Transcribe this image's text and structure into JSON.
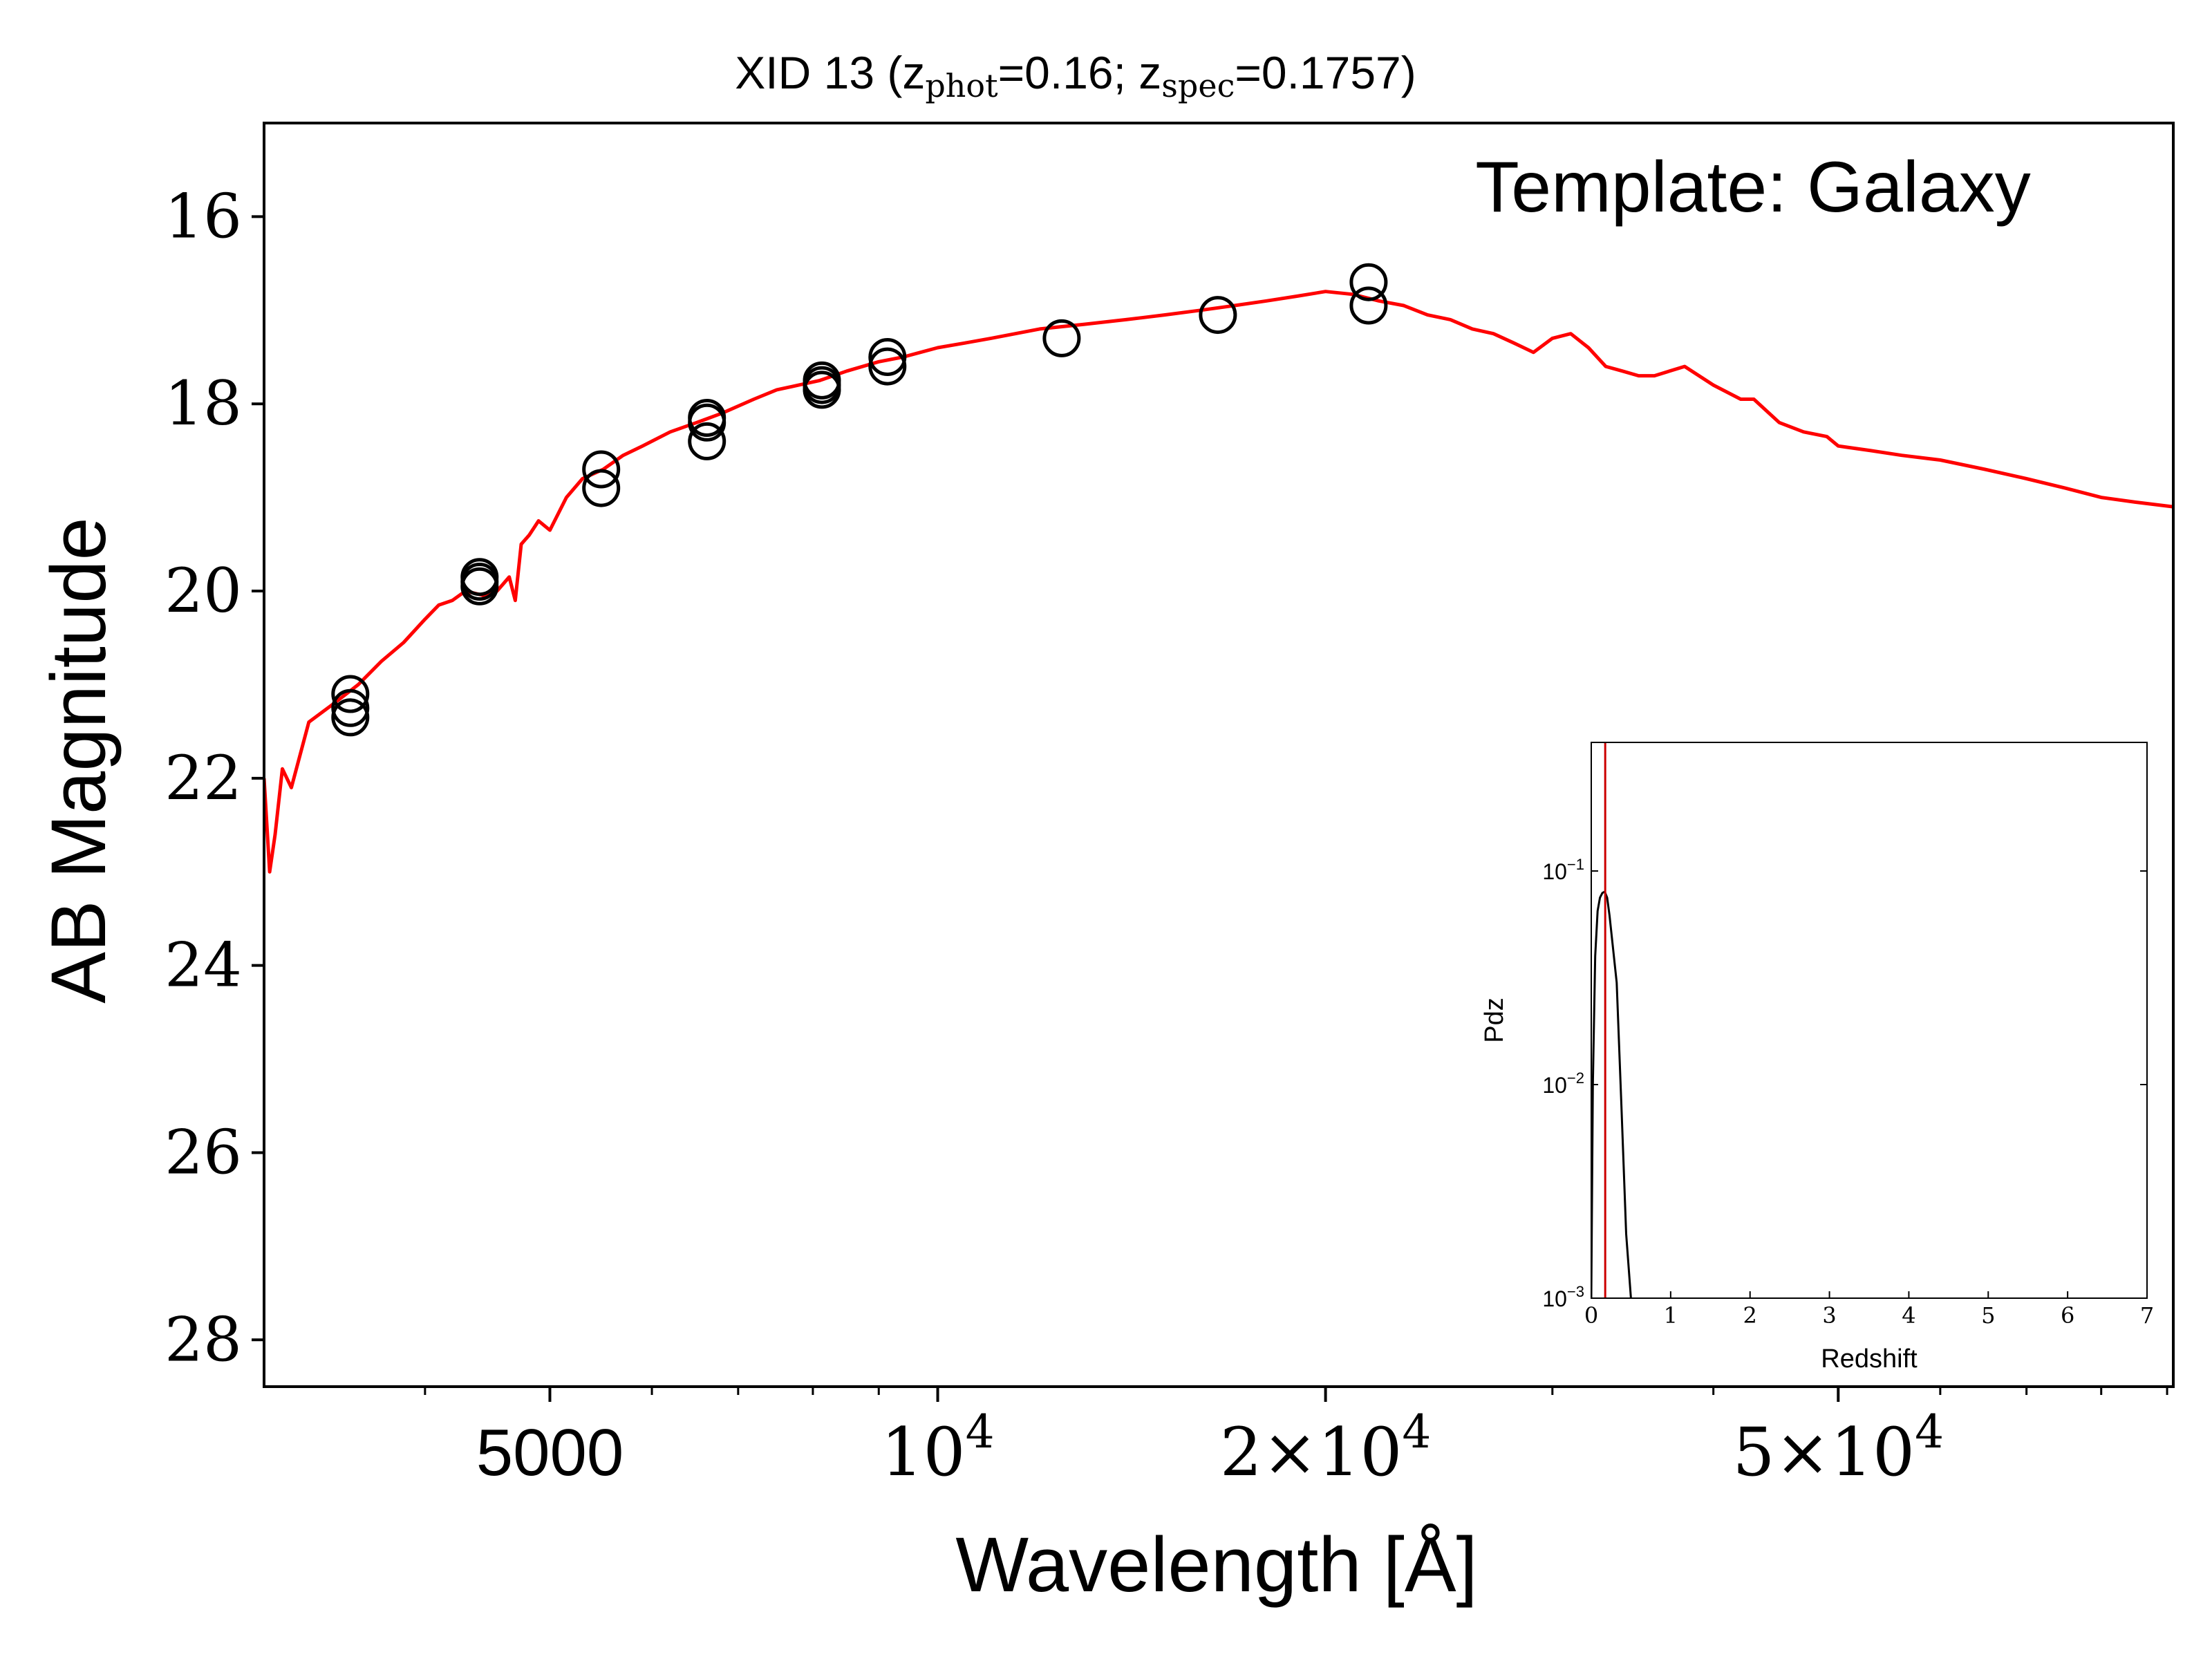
{
  "chart_data": [
    {
      "type": "scatter",
      "title": {
        "prefix": "XID 13 (z",
        "sub1": "phot",
        "mid": "=0.16; z",
        "sub2": "spec",
        "suffix": "=0.1757)"
      },
      "annotation": "Template: Galaxy",
      "xlabel": "Wavelength [Å]",
      "ylabel": "AB Magnitude",
      "x_scale": "log",
      "xlim": [
        3000,
        91000
      ],
      "ylim": [
        28.5,
        15
      ],
      "y_inverted": true,
      "grid": false,
      "x_ticks": [
        {
          "value": 5000,
          "label": "5000",
          "format": "plain"
        },
        {
          "value": 10000,
          "base": "10",
          "exp": "4",
          "format": "power"
        },
        {
          "value": 20000,
          "mant": "2",
          "times": "×",
          "base": "10",
          "exp": "4",
          "format": "sci"
        },
        {
          "value": 50000,
          "mant": "5",
          "times": "×",
          "base": "10",
          "exp": "4",
          "format": "sci"
        }
      ],
      "y_ticks": [
        {
          "value": 16,
          "label": "16"
        },
        {
          "value": 18,
          "label": "18"
        },
        {
          "value": 20,
          "label": "20"
        },
        {
          "value": 22,
          "label": "22"
        },
        {
          "value": 24,
          "label": "24"
        },
        {
          "value": 26,
          "label": "26"
        },
        {
          "value": 28,
          "label": "28"
        }
      ],
      "series": [
        {
          "kind": "line",
          "color": "#ff0000",
          "x": [
            3000,
            3030,
            3060,
            3100,
            3150,
            3250,
            3400,
            3550,
            3700,
            3850,
            4000,
            4100,
            4200,
            4300,
            4450,
            4550,
            4650,
            4700,
            4750,
            4820,
            4900,
            5000,
            5150,
            5300,
            5500,
            5700,
            5900,
            6200,
            6500,
            6800,
            7200,
            7500,
            7800,
            8100,
            8500,
            9000,
            9400,
            10000,
            10500,
            11000,
            12000,
            13000,
            14000,
            15000,
            16000,
            17000,
            18000,
            19000,
            20000,
            21000,
            22000,
            23000,
            24000,
            25000,
            26000,
            27000,
            28000,
            29000,
            30000,
            31000,
            32000,
            33000,
            34000,
            35000,
            36000,
            38000,
            40000,
            42000,
            43000,
            45000,
            47000,
            49000,
            50000,
            53000,
            56000,
            60000,
            65000,
            70000,
            75000,
            80000,
            85000,
            91000
          ],
          "y": [
            22.0,
            23.0,
            22.6,
            21.9,
            22.1,
            21.4,
            21.2,
            21.0,
            20.75,
            20.55,
            20.3,
            20.15,
            20.1,
            20.0,
            20.05,
            20.0,
            19.85,
            20.1,
            19.5,
            19.4,
            19.25,
            19.35,
            19.0,
            18.8,
            18.7,
            18.55,
            18.45,
            18.3,
            18.2,
            18.1,
            17.95,
            17.85,
            17.8,
            17.75,
            17.65,
            17.55,
            17.5,
            17.4,
            17.35,
            17.3,
            17.2,
            17.15,
            17.1,
            17.05,
            17.0,
            16.95,
            16.9,
            16.85,
            16.8,
            16.83,
            16.9,
            16.95,
            17.05,
            17.1,
            17.2,
            17.25,
            17.35,
            17.45,
            17.3,
            17.25,
            17.4,
            17.6,
            17.65,
            17.7,
            17.7,
            17.6,
            17.8,
            17.95,
            17.95,
            18.2,
            18.3,
            18.35,
            18.45,
            18.5,
            18.55,
            18.6,
            18.7,
            18.8,
            18.9,
            19.0,
            19.05,
            19.1
          ]
        },
        {
          "kind": "scatter",
          "marker": "open-circle",
          "color": "#000000",
          "x": [
            3500,
            3500,
            3500,
            4410,
            4410,
            4410,
            5480,
            5480,
            6620,
            6620,
            6620,
            8130,
            8130,
            8130,
            9140,
            9140,
            12480,
            16500,
            21600,
            21600
          ],
          "y": [
            21.1,
            21.25,
            21.35,
            19.85,
            19.9,
            19.95,
            18.7,
            18.9,
            18.15,
            18.2,
            18.4,
            17.75,
            17.8,
            17.85,
            17.5,
            17.6,
            17.3,
            17.05,
            16.7,
            16.95
          ]
        }
      ]
    },
    {
      "type": "line",
      "inset": true,
      "xlabel": "Redshift",
      "ylabel": "Pdz",
      "x_scale": "linear",
      "y_scale": "log",
      "xlim": [
        0,
        7
      ],
      "ylim": [
        0.001,
        0.4
      ],
      "x_ticks": [
        "0",
        "1",
        "2",
        "3",
        "4",
        "5",
        "6",
        "7"
      ],
      "y_ticks": [
        {
          "value": 0.1,
          "base": "10",
          "exp": "−1"
        },
        {
          "value": 0.01,
          "base": "10",
          "exp": "−2"
        },
        {
          "value": 0.001,
          "base": "10",
          "exp": "−3"
        }
      ],
      "series": [
        {
          "kind": "line",
          "color": "#000000",
          "x": [
            0.0,
            0.02,
            0.05,
            0.08,
            0.11,
            0.14,
            0.17,
            0.2,
            0.23,
            0.27,
            0.32,
            0.38,
            0.44,
            0.5
          ],
          "y": [
            0.001,
            0.01,
            0.04,
            0.065,
            0.075,
            0.079,
            0.08,
            0.075,
            0.062,
            0.045,
            0.03,
            0.008,
            0.002,
            0.001
          ]
        },
        {
          "kind": "vline",
          "color": "#cc0000",
          "x": 0.1757
        }
      ]
    }
  ]
}
